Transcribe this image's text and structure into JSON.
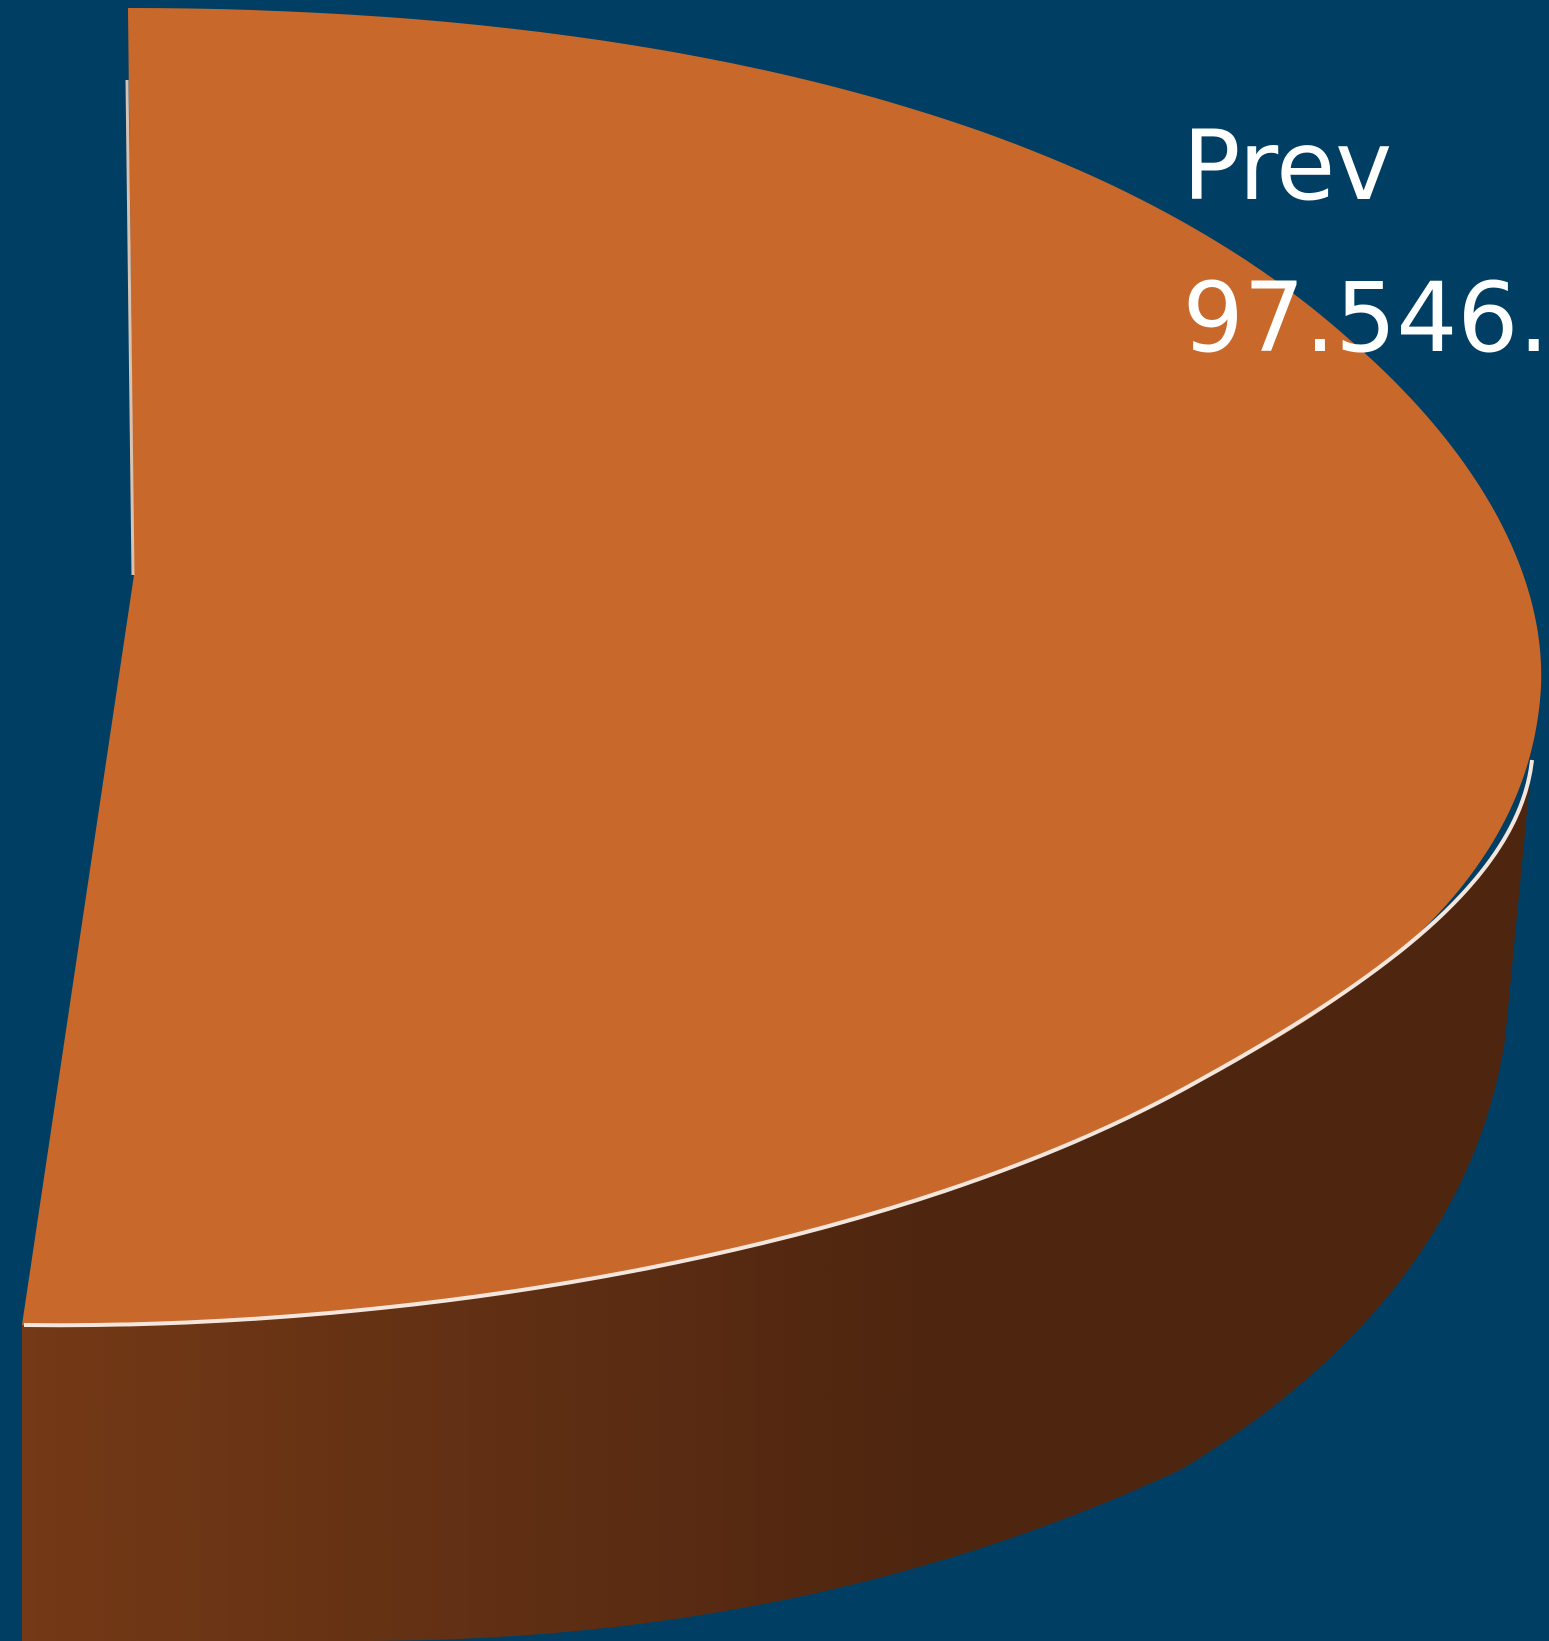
{
  "chart_data": {
    "type": "pie",
    "style": "3d",
    "legend": "none",
    "cropped": true,
    "slices": [
      {
        "category": "Prev",
        "value_label": "97.546.",
        "color": "#c8692b",
        "side_color": "#4f2610"
      }
    ]
  },
  "colors": {
    "background": "#003f63",
    "slice_top": "#c8692b",
    "slice_side_light": "#723915",
    "slice_side_dark": "#4e250f",
    "edge_highlight": "#ffffff",
    "label_text": "#ffffff"
  }
}
